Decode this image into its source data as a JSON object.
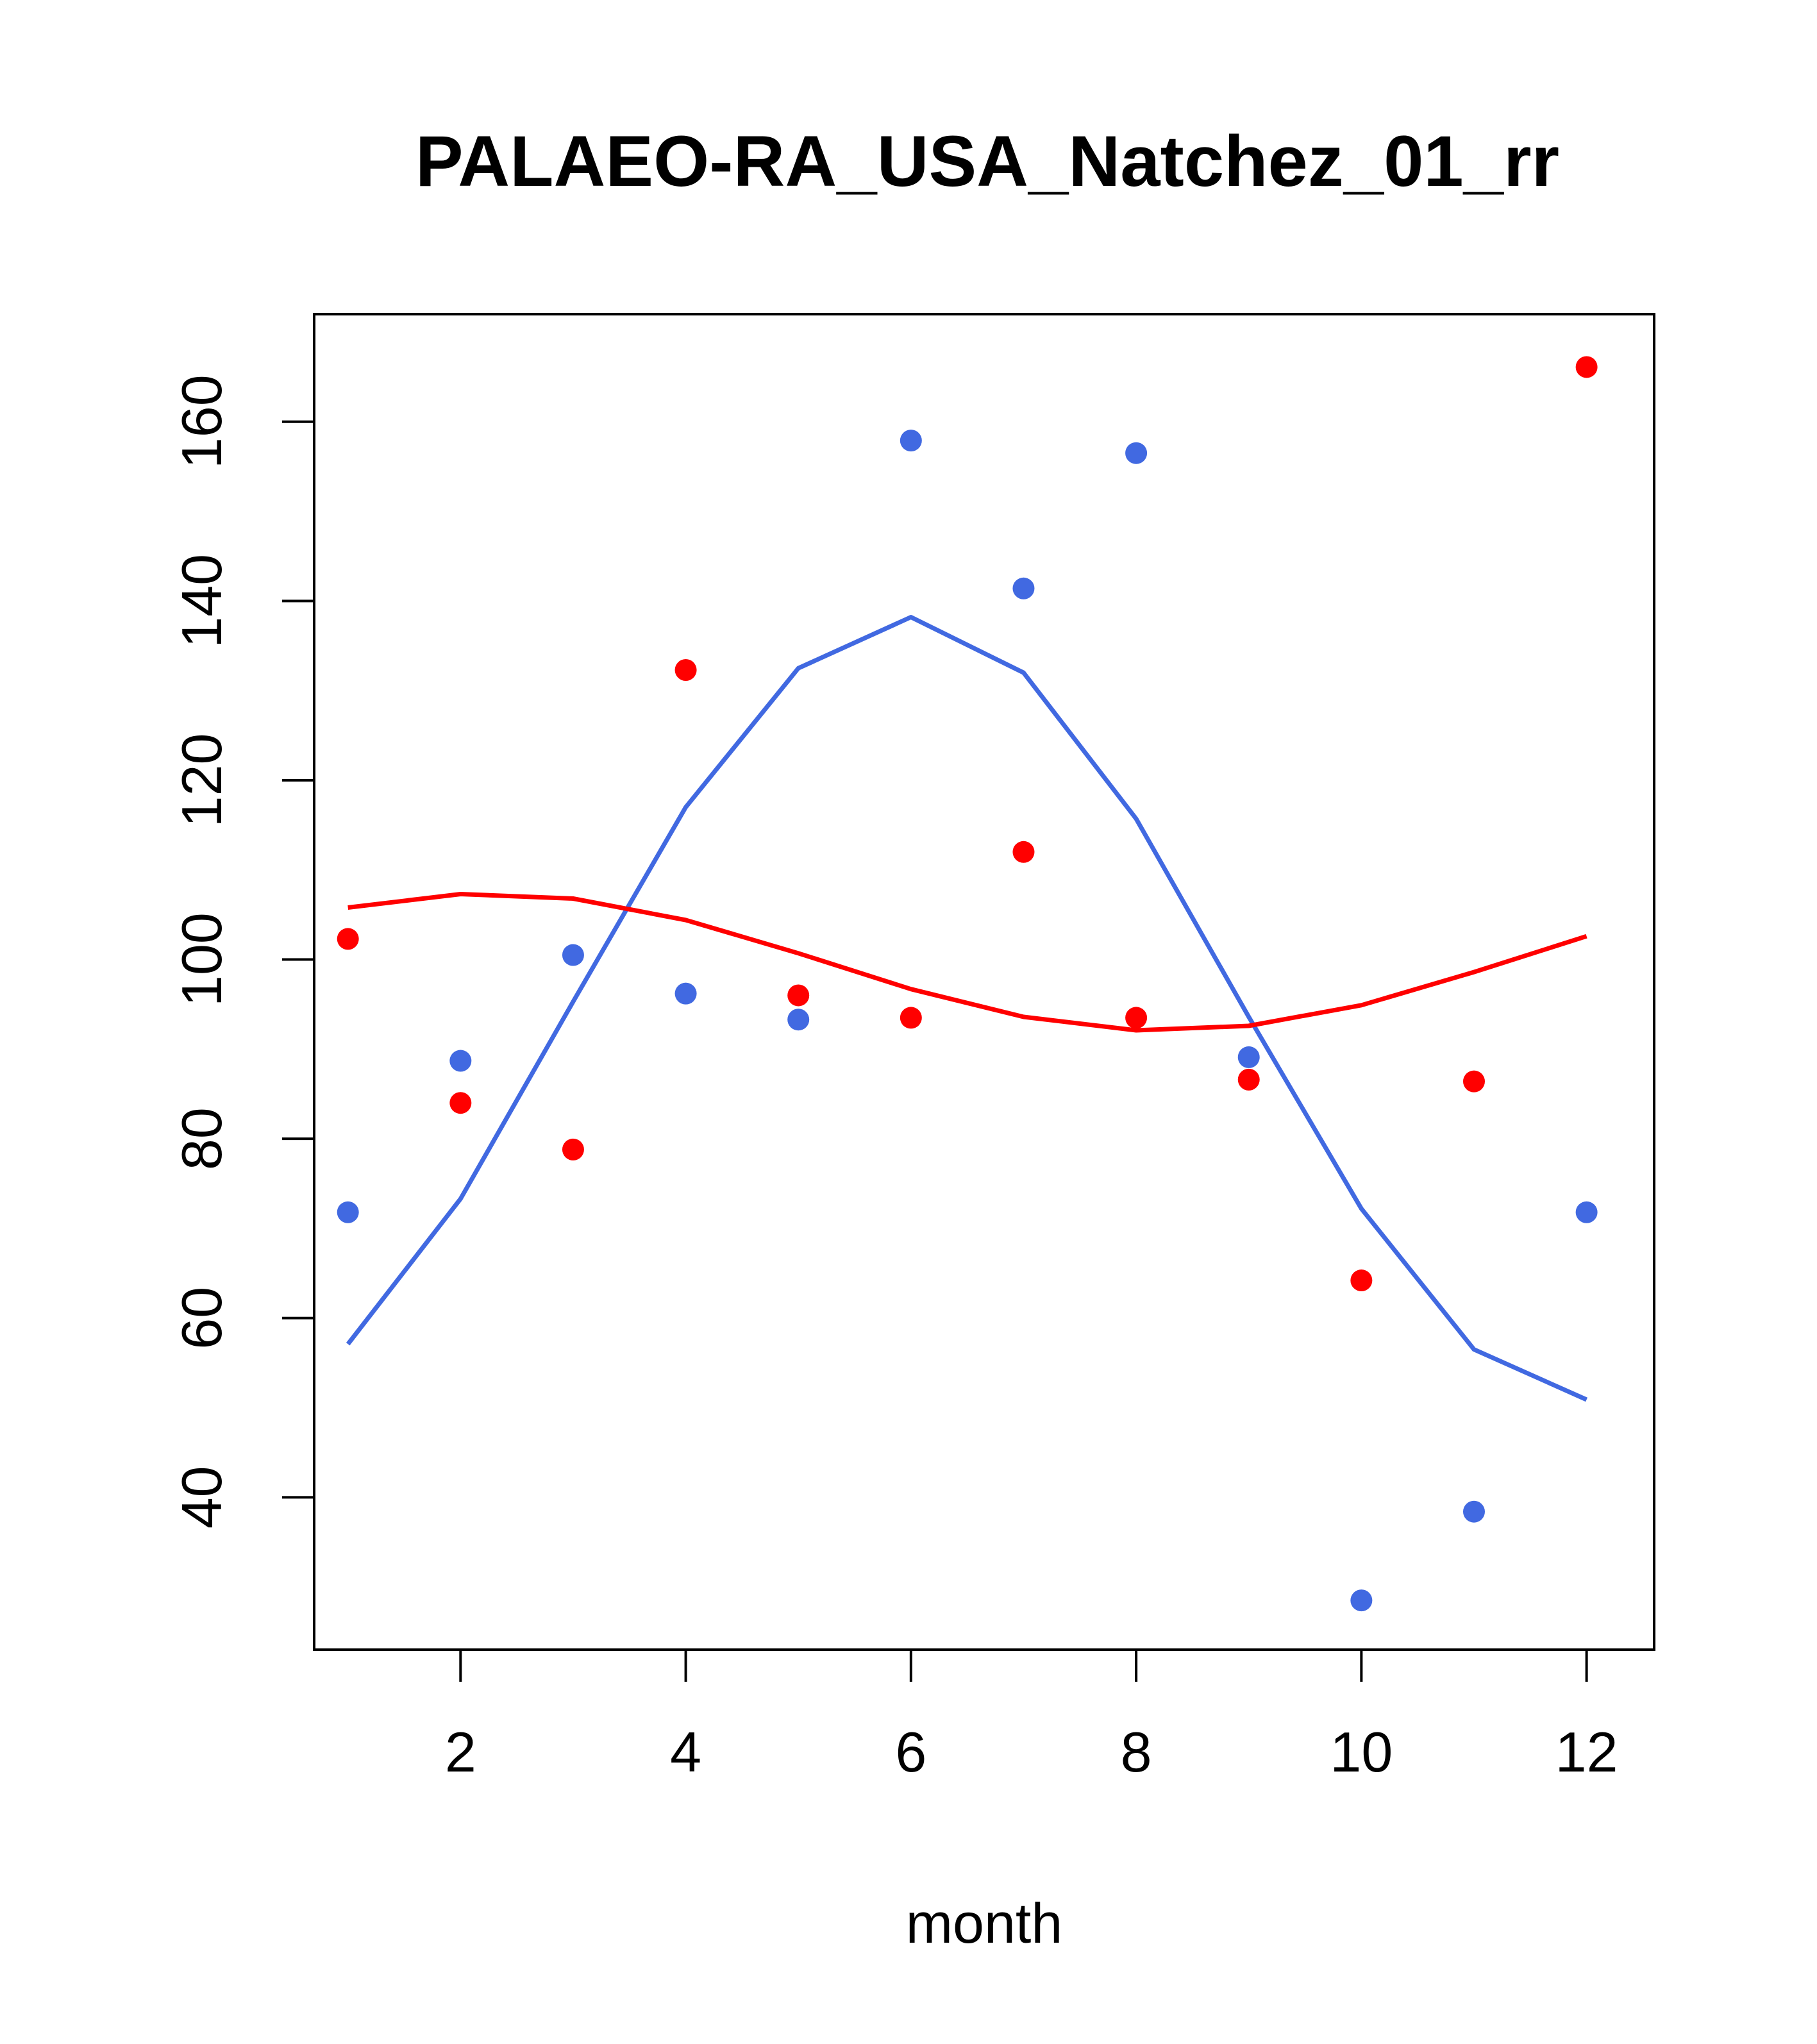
{
  "chart_data": {
    "type": "scatter",
    "title": "PALAEO-RA_USA_Natchez_01_rr",
    "xlabel": "month",
    "ylabel": "",
    "xlim": [
      0.7,
      12.6
    ],
    "ylim": [
      23,
      172
    ],
    "xticks": [
      2,
      4,
      6,
      8,
      10,
      12
    ],
    "yticks": [
      40,
      60,
      80,
      100,
      120,
      140,
      160
    ],
    "grid": false,
    "legend": "none",
    "series": [
      {
        "kind": "points",
        "color": "#4169E1",
        "x": [
          1,
          2,
          3,
          4,
          5,
          6,
          7,
          8,
          9,
          10,
          11,
          12
        ],
        "y": [
          71.8,
          88.7,
          100.5,
          96.2,
          93.3,
          157.9,
          141.4,
          156.5,
          89.1,
          28.5,
          38.4,
          71.8
        ]
      },
      {
        "kind": "points",
        "color": "#FF0000",
        "x": [
          1,
          2,
          3,
          4,
          5,
          6,
          7,
          8,
          9,
          10,
          11,
          12
        ],
        "y": [
          102.3,
          84.0,
          78.8,
          132.3,
          96.0,
          93.5,
          112.0,
          93.5,
          86.6,
          64.2,
          86.4,
          166.1
        ]
      },
      {
        "kind": "line",
        "color": "#4169E1",
        "x": [
          1,
          2,
          3,
          4,
          5,
          6,
          7,
          8,
          9,
          10,
          11,
          12
        ],
        "y": [
          57.1,
          73.3,
          95.3,
          117.0,
          132.5,
          138.2,
          132.0,
          115.7,
          93.6,
          72.2,
          56.5,
          50.9
        ]
      },
      {
        "kind": "line",
        "color": "#FF0000",
        "x": [
          1,
          2,
          3,
          4,
          5,
          6,
          7,
          8,
          9,
          10,
          11,
          12
        ],
        "y": [
          105.8,
          107.3,
          106.8,
          104.4,
          100.7,
          96.7,
          93.6,
          92.1,
          92.6,
          94.9,
          98.6,
          102.6
        ]
      }
    ]
  }
}
